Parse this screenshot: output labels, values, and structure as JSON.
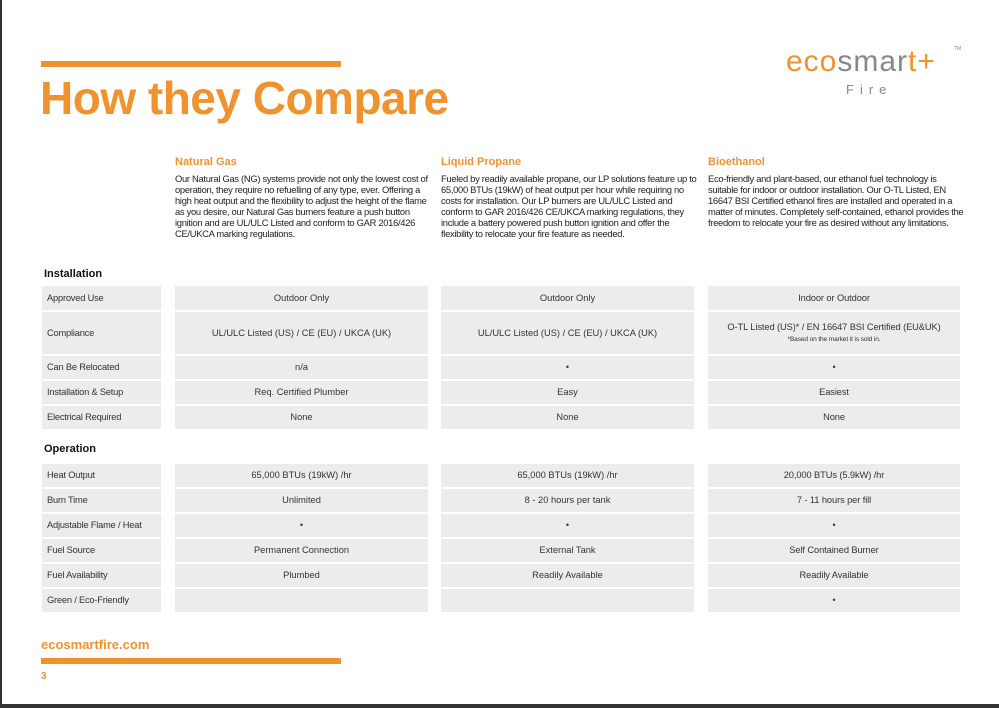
{
  "title": "How they Compare",
  "logo": {
    "word_part1": "eco",
    "word_part2": "smar",
    "word_part3": "t+",
    "tm": "TM",
    "sub": "Fire"
  },
  "columns": [
    {
      "heading": "Natural Gas",
      "description": "Our Natural Gas (NG) systems provide not only the lowest cost of operation, they require no refuelling of any type, ever. Offering a high heat output and the flexibility to adjust the height of the flame as you desire, our Natural Gas burners feature a push button ignition and are UL/ULC Listed and conform to GAR 2016/426 CE/UKCA marking regulations."
    },
    {
      "heading": "Liquid Propane",
      "description": "Fueled by readily available propane, our LP solutions feature up to 65,000 BTUs (19kW) of heat output per hour while requiring no costs for installation. Our LP burners are UL/ULC Listed and conform to GAR 2016/426 CE/UKCA marking regulations, they include a battery powered push button ignition and offer the flexibility to relocate your fire feature as needed."
    },
    {
      "heading": "Bioethanol",
      "description": "Eco-friendly and plant-based, our ethanol fuel technology is suitable for indoor or outdoor installation. Our O-TL Listed, EN 16647 BSI Certified ethanol fires are installed and operated in a matter of minutes. Completely self-contained, ethanol provides the freedom to relocate your fire as desired without any limitations."
    }
  ],
  "installation": {
    "heading": "Installation",
    "rows": [
      {
        "label": "Approved Use",
        "values": [
          "Outdoor Only",
          "Outdoor Only",
          "Indoor or Outdoor"
        ]
      },
      {
        "label": "Compliance",
        "values": [
          "UL/ULC Listed (US) / CE (EU) / UKCA (UK)",
          "UL/ULC Listed (US) / CE (EU) / UKCA (UK)",
          "O-TL Listed (US)* / EN 16647 BSI Certified (EU&UK)"
        ],
        "note": "*Based on the market it is sold in."
      },
      {
        "label": "Can Be Relocated",
        "values": [
          "n/a",
          "•",
          "•"
        ]
      },
      {
        "label": "Installation & Setup",
        "values": [
          "Req. Certified Plumber",
          "Easy",
          "Easiest"
        ]
      },
      {
        "label": "Electrical Required",
        "values": [
          "None",
          "None",
          "None"
        ]
      }
    ]
  },
  "operation": {
    "heading": "Operation",
    "rows": [
      {
        "label": "Heat Output",
        "values": [
          "65,000 BTUs (19kW) /hr",
          "65,000 BTUs (19kW) /hr",
          "20,000 BTUs (5.9kW) /hr"
        ]
      },
      {
        "label": "Burn Time",
        "values": [
          "Unlimited",
          "8 - 20 hours per tank",
          "7 - 11 hours per fill"
        ]
      },
      {
        "label": "Adjustable Flame / Heat",
        "values": [
          "•",
          "•",
          "•"
        ]
      },
      {
        "label": "Fuel Source",
        "values": [
          "Permanent Connection",
          "External Tank",
          "Self Contained Burner"
        ]
      },
      {
        "label": "Fuel Availability",
        "values": [
          "Plumbed",
          "Readily Available",
          "Readily Available"
        ]
      },
      {
        "label": "Green / Eco-Friendly",
        "values": [
          "",
          "",
          "•"
        ]
      }
    ]
  },
  "footer": {
    "website": "ecosmartfire.com",
    "page": "3"
  },
  "colors": {
    "accent": "#f0922e",
    "cell": "#ececec"
  }
}
